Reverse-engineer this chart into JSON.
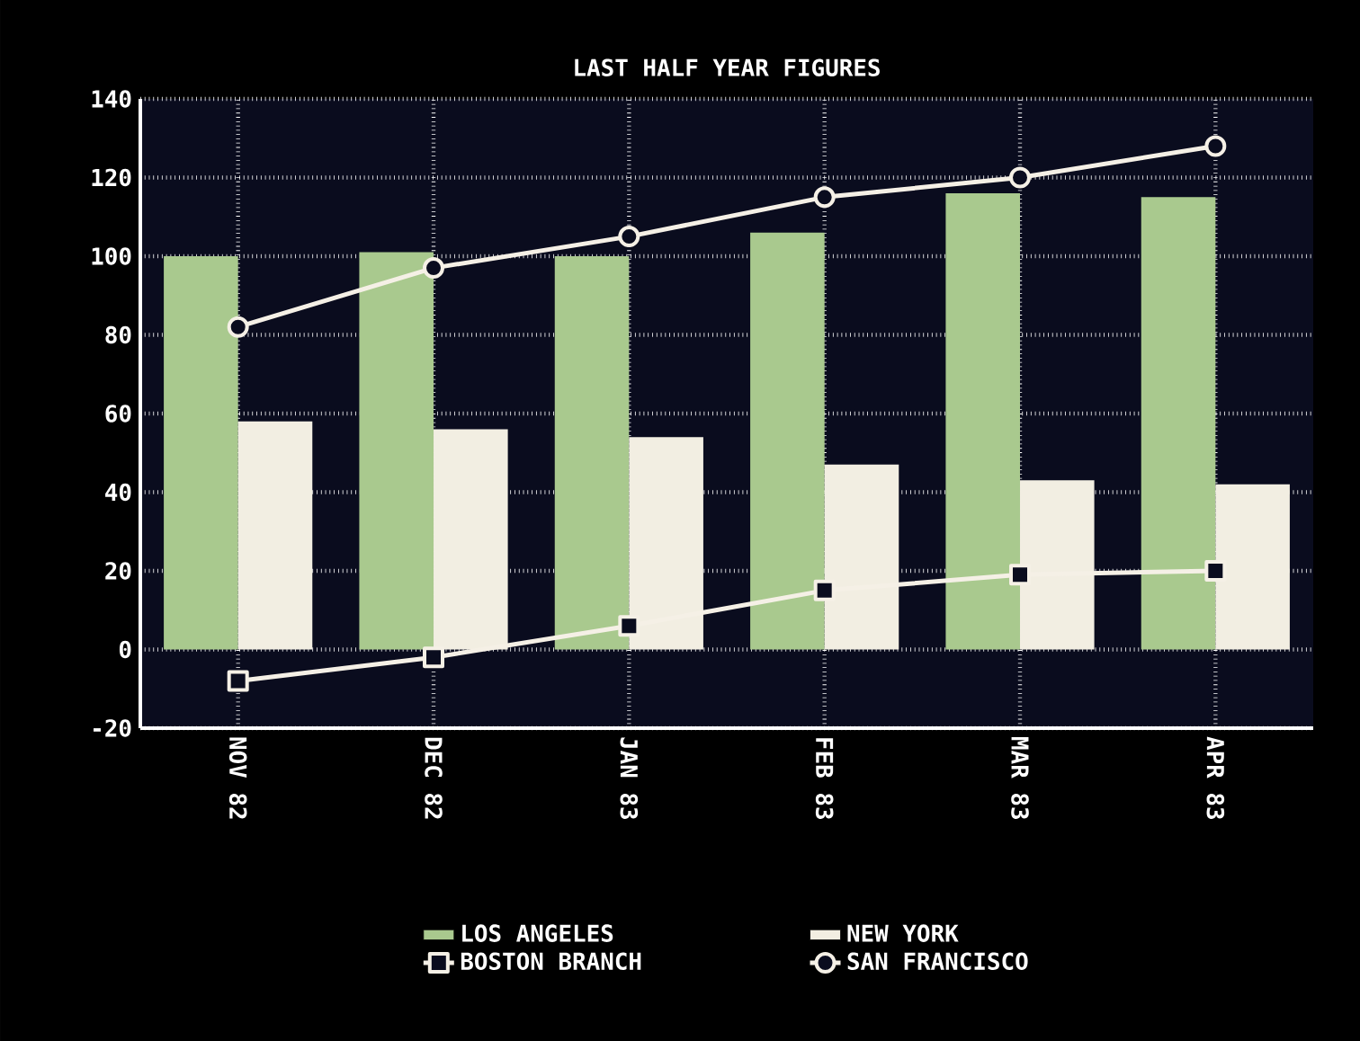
{
  "chart_data": {
    "type": "bar",
    "title": "LAST HALF YEAR FIGURES",
    "categories": [
      "NOV 82",
      "DEC 82",
      "JAN 83",
      "FEB 83",
      "MAR 83",
      "APR 83"
    ],
    "series": [
      {
        "name": "LOS ANGELES",
        "color": "#a9c98e",
        "values": [
          100,
          101,
          100,
          106,
          116,
          115
        ]
      },
      {
        "name": "NEW YORK",
        "color": "#f2eee2",
        "values": [
          58,
          56,
          54,
          47,
          43,
          42
        ]
      },
      {
        "name": "BOSTON BRANCH",
        "type": "line",
        "marker": "square",
        "color": "#f5f0e6",
        "values": [
          -8,
          -2,
          6,
          15,
          19,
          20
        ]
      },
      {
        "name": "SAN FRANCISCO",
        "type": "line",
        "marker": "circle",
        "color": "#f5f0e6",
        "values": [
          82,
          97,
          105,
          115,
          120,
          128
        ]
      }
    ],
    "ylim": [
      -20,
      140
    ],
    "yticks": [
      -20,
      0,
      20,
      40,
      60,
      80,
      100,
      120,
      140
    ],
    "grid": true,
    "legend": "bottom"
  }
}
